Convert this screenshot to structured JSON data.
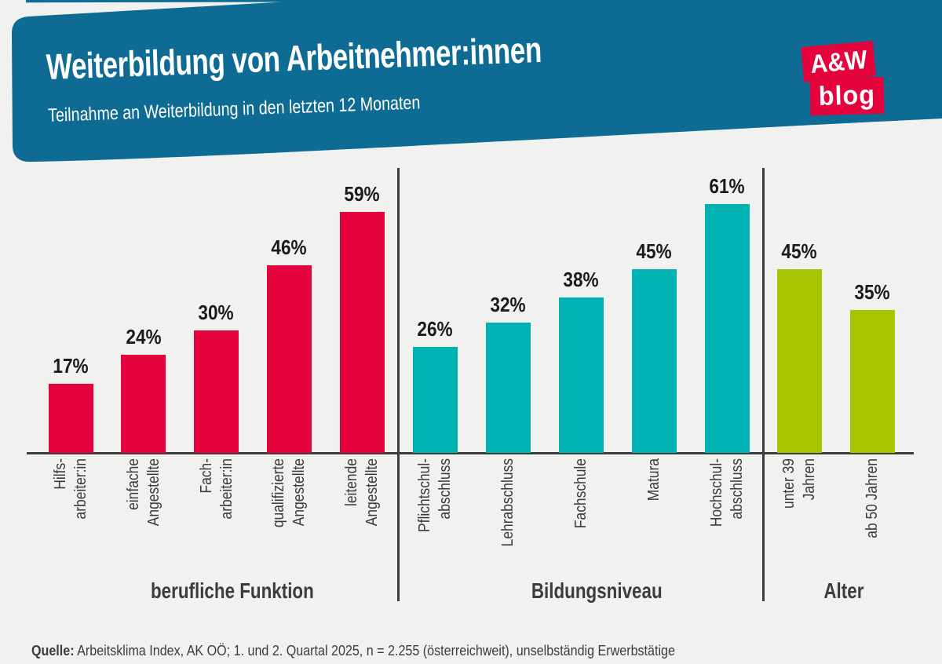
{
  "header": {
    "title": "Weiterbildung von Arbeitnehmer:innen",
    "subtitle": "Teilnahme an Weiterbildung in den letzten 12 Monaten",
    "background_color": "#0e6b94",
    "text_color": "#ffffff"
  },
  "logo": {
    "line1": "A&W",
    "line2": "blog",
    "box_color": "#e4033c",
    "text_color": "#ffffff"
  },
  "chart_data": {
    "type": "bar",
    "value_unit": "%",
    "value_labels_shown": true,
    "y_axis": "hidden",
    "grid": false,
    "legend": false,
    "ylim": [
      0,
      70
    ],
    "groups": [
      {
        "name": "berufliche Funktion",
        "color": "#e4033c",
        "bars": [
          {
            "label_lines": [
              "Hilfs-",
              "arbeiter:in"
            ],
            "value": 17
          },
          {
            "label_lines": [
              "einfache",
              "Angestellte"
            ],
            "value": 24
          },
          {
            "label_lines": [
              "Fach-",
              "arbeiter:in"
            ],
            "value": 30
          },
          {
            "label_lines": [
              "qualifizierte",
              "Angestellte"
            ],
            "value": 46
          },
          {
            "label_lines": [
              "leitende",
              "Angestellte"
            ],
            "value": 59
          }
        ]
      },
      {
        "name": "Bildungsniveau",
        "color": "#00b2b1",
        "bars": [
          {
            "label_lines": [
              "Pflichtschul-",
              "abschluss"
            ],
            "value": 26
          },
          {
            "label_lines": [
              "Lehrabschluss"
            ],
            "value": 32
          },
          {
            "label_lines": [
              "Fachschule"
            ],
            "value": 38
          },
          {
            "label_lines": [
              "Matura"
            ],
            "value": 45
          },
          {
            "label_lines": [
              "Hochschul-",
              "abschluss"
            ],
            "value": 61
          }
        ]
      },
      {
        "name": "Alter",
        "color": "#a9c400",
        "bars": [
          {
            "label_lines": [
              "unter 39",
              "Jahren"
            ],
            "value": 45
          },
          {
            "label_lines": [
              "ab 50 Jahren"
            ],
            "value": 35
          }
        ]
      }
    ]
  },
  "footer": {
    "source_label": "Quelle:",
    "source_text": " Arbeitsklima Index, AK OÖ; 1. und 2. Quartal 2025, n = 2.255 (österreichweit), unselbständig Erwerbstätige"
  },
  "colors": {
    "background": "#f1f1ef",
    "axis": "#3d3d3c",
    "value_text": "#1b1b19",
    "tick_text": "#3a3a39"
  }
}
